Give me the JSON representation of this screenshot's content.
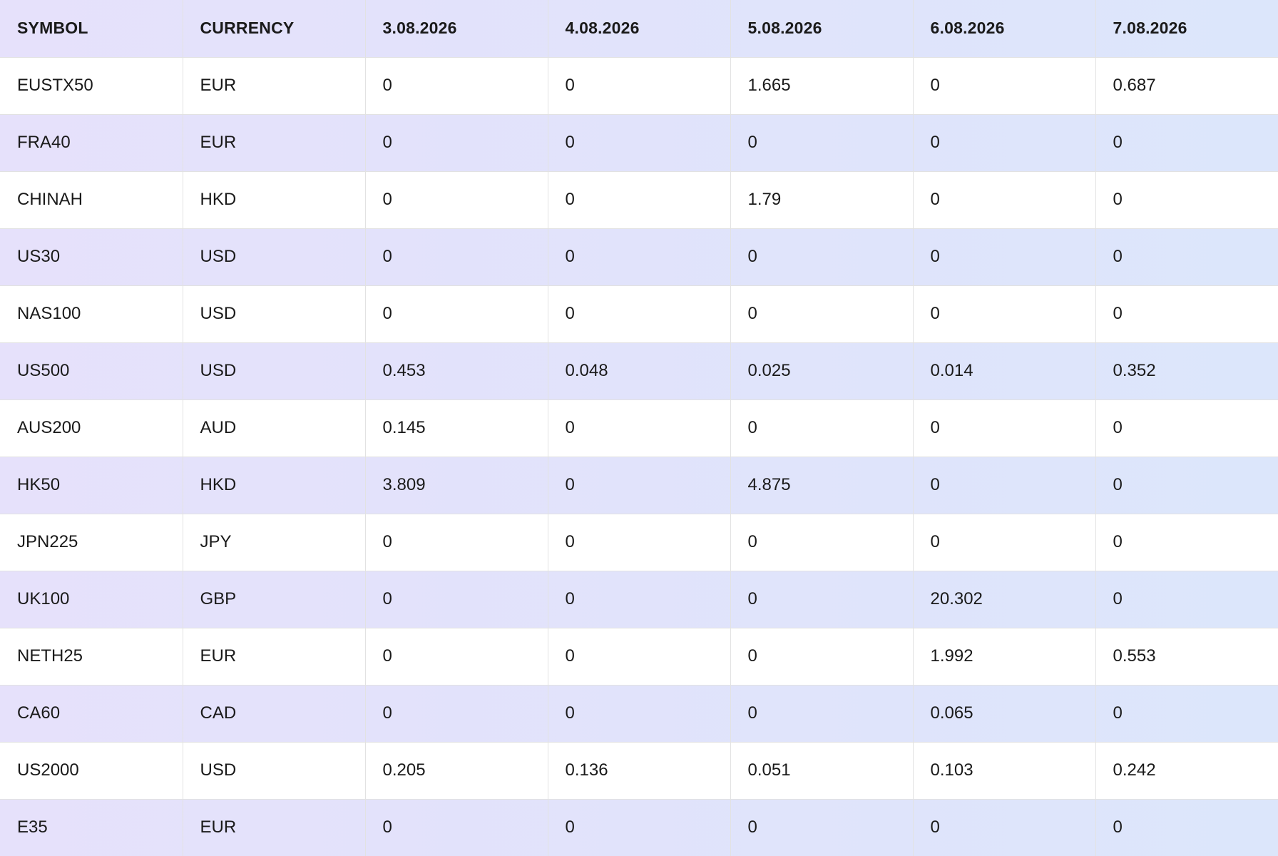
{
  "table": {
    "headers": [
      "SYMBOL",
      "CURRENCY",
      "3.08.2026",
      "4.08.2026",
      "5.08.2026",
      "6.08.2026",
      "7.08.2026"
    ],
    "rows": [
      [
        "EUSTX50",
        "EUR",
        "0",
        "0",
        "1.665",
        "0",
        "0.687"
      ],
      [
        "FRA40",
        "EUR",
        "0",
        "0",
        "0",
        "0",
        "0"
      ],
      [
        "CHINAH",
        "HKD",
        "0",
        "0",
        "1.79",
        "0",
        "0"
      ],
      [
        "US30",
        "USD",
        "0",
        "0",
        "0",
        "0",
        "0"
      ],
      [
        "NAS100",
        "USD",
        "0",
        "0",
        "0",
        "0",
        "0"
      ],
      [
        "US500",
        "USD",
        "0.453",
        "0.048",
        "0.025",
        "0.014",
        "0.352"
      ],
      [
        "AUS200",
        "AUD",
        "0.145",
        "0",
        "0",
        "0",
        "0"
      ],
      [
        "HK50",
        "HKD",
        "3.809",
        "0",
        "4.875",
        "0",
        "0"
      ],
      [
        "JPN225",
        "JPY",
        "0",
        "0",
        "0",
        "0",
        "0"
      ],
      [
        "UK100",
        "GBP",
        "0",
        "0",
        "0",
        "20.302",
        "0"
      ],
      [
        "NETH25",
        "EUR",
        "0",
        "0",
        "0",
        "1.992",
        "0.553"
      ],
      [
        "CA60",
        "CAD",
        "0",
        "0",
        "0",
        "0.065",
        "0"
      ],
      [
        "US2000",
        "USD",
        "0.205",
        "0.136",
        "0.051",
        "0.103",
        "0.242"
      ],
      [
        "E35",
        "EUR",
        "0",
        "0",
        "0",
        "0",
        "0"
      ]
    ]
  },
  "colors": {
    "header_gradient_start": "#e6e1fb",
    "header_gradient_end": "#dce6fb",
    "row_shaded_start": "#e6e1fb",
    "row_shaded_end": "#dce6fb",
    "row_plain": "#ffffff",
    "grid_line": "#e2e2e2",
    "text": "#1a1a1a"
  }
}
